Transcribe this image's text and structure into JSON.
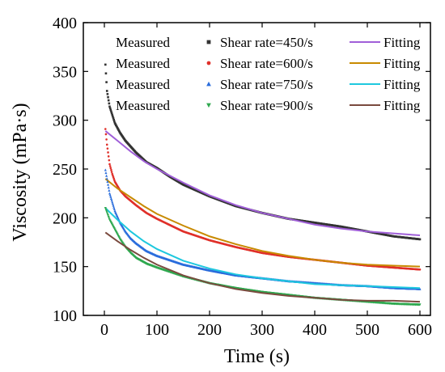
{
  "chart_data": {
    "type": "scatter",
    "xlabel": "Time (s)",
    "ylabel": "Viscosity (mPa·s)",
    "xlim": [
      -40,
      620
    ],
    "ylim": [
      100,
      400
    ],
    "xticks": [
      0,
      100,
      200,
      300,
      400,
      500,
      600
    ],
    "yticks": [
      100,
      150,
      200,
      250,
      300,
      350,
      400
    ],
    "grid": false,
    "legend_position": "top-right",
    "series": [
      {
        "measured_label": "Measured",
        "name": "Shear rate=450/s",
        "fit_label": "Fitting",
        "marker": "square",
        "measured_color": "#333333",
        "fit_color": "#a05fd8",
        "measured": [
          [
            2,
            357
          ],
          [
            5,
            330
          ],
          [
            10,
            314
          ],
          [
            20,
            297
          ],
          [
            30,
            287
          ],
          [
            40,
            279
          ],
          [
            60,
            267
          ],
          [
            80,
            257
          ],
          [
            100,
            251
          ],
          [
            125,
            242
          ],
          [
            150,
            234
          ],
          [
            175,
            228
          ],
          [
            200,
            222
          ],
          [
            250,
            212
          ],
          [
            300,
            205
          ],
          [
            350,
            199
          ],
          [
            400,
            195
          ],
          [
            450,
            191
          ],
          [
            500,
            186
          ],
          [
            550,
            181
          ],
          [
            600,
            178
          ]
        ],
        "fit": [
          [
            2,
            289
          ],
          [
            25,
            279
          ],
          [
            50,
            268
          ],
          [
            75,
            258
          ],
          [
            100,
            250
          ],
          [
            150,
            236
          ],
          [
            200,
            223
          ],
          [
            250,
            213
          ],
          [
            300,
            205
          ],
          [
            350,
            199
          ],
          [
            400,
            193
          ],
          [
            450,
            189
          ],
          [
            500,
            186
          ],
          [
            550,
            184
          ],
          [
            600,
            182
          ]
        ]
      },
      {
        "measured_label": "Measured",
        "name": "Shear rate=600/s",
        "fit_label": "Fitting",
        "marker": "circle",
        "measured_color": "#e0302a",
        "fit_color": "#c88a00",
        "measured": [
          [
            2,
            291
          ],
          [
            5,
            275
          ],
          [
            10,
            255
          ],
          [
            15,
            245
          ],
          [
            20,
            237
          ],
          [
            30,
            228
          ],
          [
            40,
            222
          ],
          [
            60,
            213
          ],
          [
            80,
            205
          ],
          [
            100,
            199
          ],
          [
            150,
            186
          ],
          [
            200,
            177
          ],
          [
            250,
            170
          ],
          [
            300,
            164
          ],
          [
            350,
            160
          ],
          [
            400,
            157
          ],
          [
            450,
            154
          ],
          [
            500,
            151
          ],
          [
            550,
            149
          ],
          [
            600,
            147
          ]
        ],
        "fit": [
          [
            2,
            240
          ],
          [
            25,
            230
          ],
          [
            50,
            221
          ],
          [
            75,
            212
          ],
          [
            100,
            204
          ],
          [
            150,
            192
          ],
          [
            200,
            181
          ],
          [
            250,
            173
          ],
          [
            300,
            166
          ],
          [
            350,
            161
          ],
          [
            400,
            157
          ],
          [
            450,
            154
          ],
          [
            500,
            152
          ],
          [
            550,
            151
          ],
          [
            600,
            150
          ]
        ]
      },
      {
        "measured_label": "Measured",
        "name": "Shear rate=750/s",
        "fit_label": "Fitting",
        "marker": "triangle-up",
        "measured_color": "#2a6ddc",
        "fit_color": "#1ec8de",
        "measured": [
          [
            2,
            249
          ],
          [
            5,
            240
          ],
          [
            10,
            225
          ],
          [
            20,
            207
          ],
          [
            30,
            195
          ],
          [
            40,
            186
          ],
          [
            50,
            179
          ],
          [
            60,
            174
          ],
          [
            80,
            166
          ],
          [
            100,
            161
          ],
          [
            150,
            152
          ],
          [
            200,
            146
          ],
          [
            250,
            141
          ],
          [
            300,
            138
          ],
          [
            350,
            135
          ],
          [
            400,
            133
          ],
          [
            450,
            131
          ],
          [
            500,
            130
          ],
          [
            550,
            128
          ],
          [
            600,
            127
          ]
        ],
        "fit": [
          [
            2,
            210
          ],
          [
            25,
            198
          ],
          [
            50,
            186
          ],
          [
            75,
            176
          ],
          [
            100,
            168
          ],
          [
            150,
            156
          ],
          [
            200,
            148
          ],
          [
            250,
            142
          ],
          [
            300,
            138
          ],
          [
            350,
            135
          ],
          [
            400,
            132
          ],
          [
            450,
            131
          ],
          [
            500,
            130
          ],
          [
            550,
            129
          ],
          [
            600,
            128
          ]
        ]
      },
      {
        "measured_label": "Measured",
        "name": "Shear rate=900/s",
        "fit_label": "Fitting",
        "marker": "triangle-down",
        "measured_color": "#2fa84f",
        "fit_color": "#7a4a3e",
        "measured": [
          [
            2,
            210
          ],
          [
            10,
            198
          ],
          [
            20,
            188
          ],
          [
            30,
            178
          ],
          [
            40,
            170
          ],
          [
            50,
            164
          ],
          [
            60,
            159
          ],
          [
            80,
            153
          ],
          [
            100,
            149
          ],
          [
            150,
            140
          ],
          [
            200,
            133
          ],
          [
            250,
            128
          ],
          [
            300,
            124
          ],
          [
            350,
            121
          ],
          [
            400,
            118
          ],
          [
            450,
            116
          ],
          [
            500,
            114
          ],
          [
            550,
            112
          ],
          [
            600,
            111
          ]
        ],
        "fit": [
          [
            2,
            185
          ],
          [
            25,
            176
          ],
          [
            50,
            167
          ],
          [
            75,
            159
          ],
          [
            100,
            152
          ],
          [
            150,
            141
          ],
          [
            200,
            133
          ],
          [
            250,
            127
          ],
          [
            300,
            123
          ],
          [
            350,
            120
          ],
          [
            400,
            118
          ],
          [
            450,
            116
          ],
          [
            500,
            115
          ],
          [
            550,
            115
          ],
          [
            600,
            114
          ]
        ]
      }
    ]
  }
}
